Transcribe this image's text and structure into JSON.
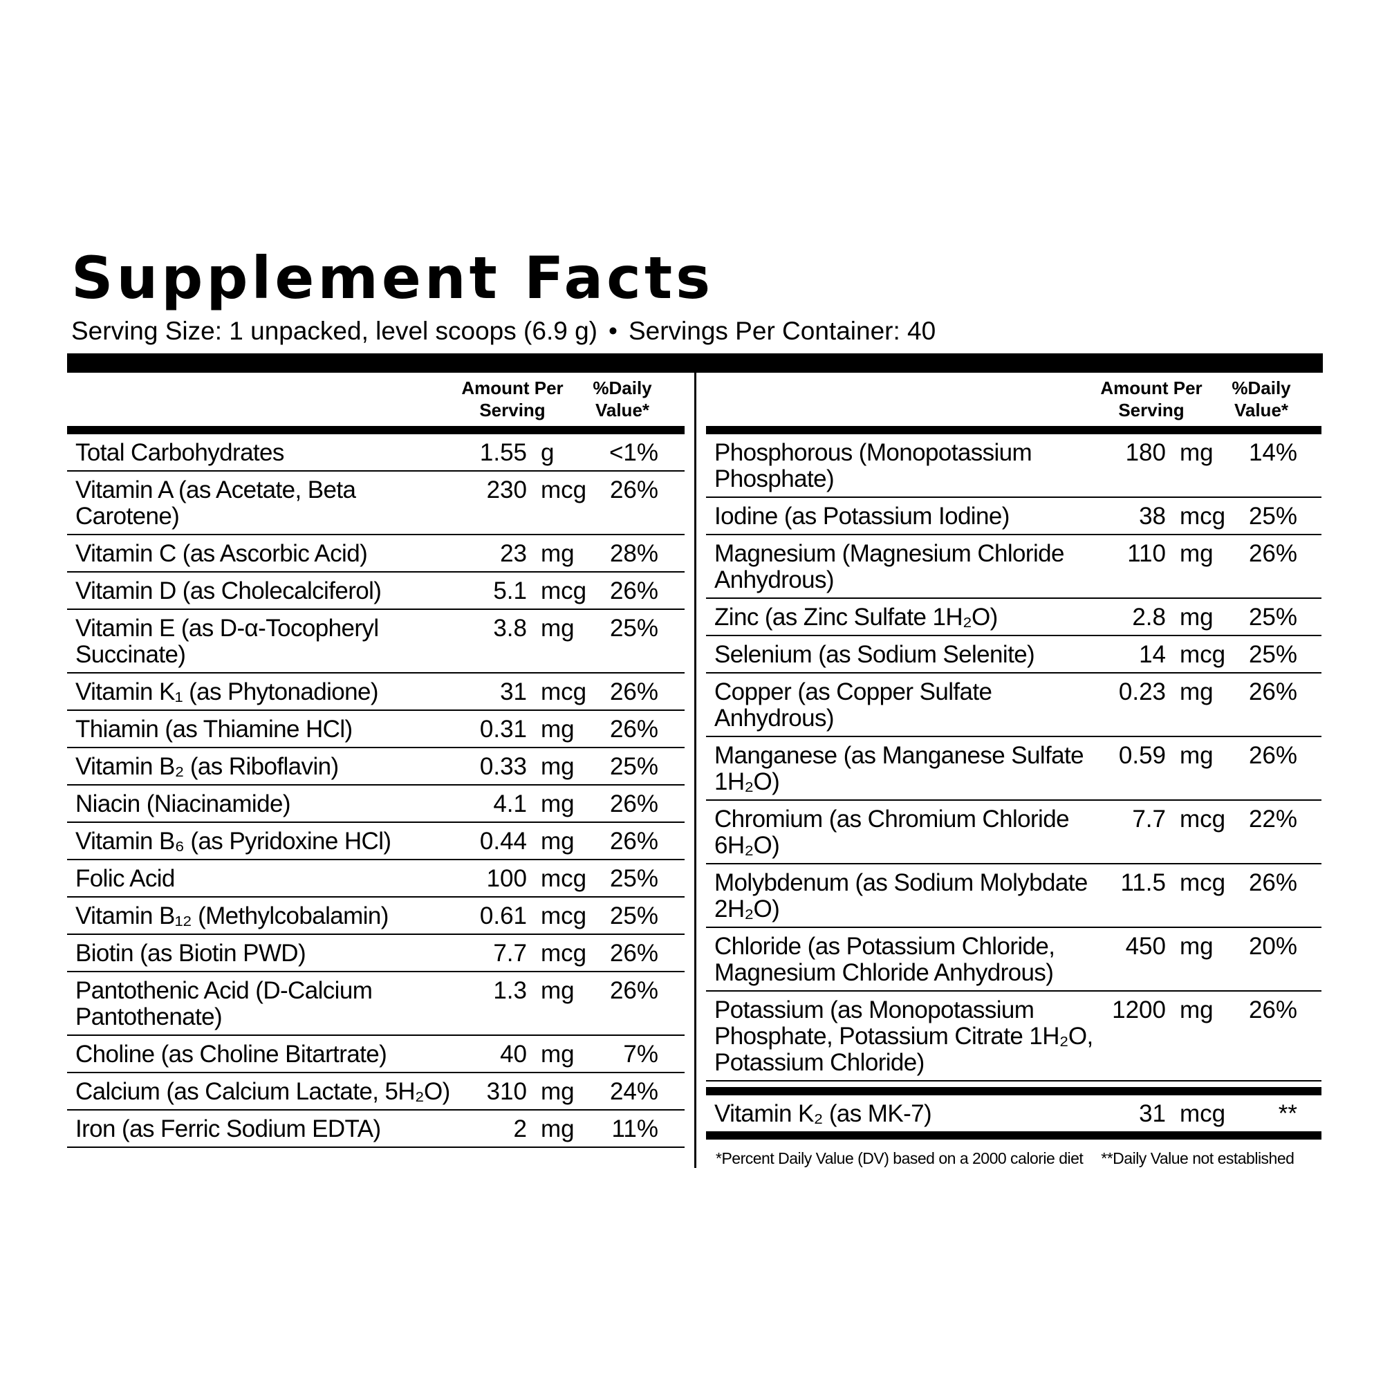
{
  "title": "Supplement Facts",
  "serving": {
    "size": "Serving Size: 1 unpacked, level scoops (6.9 g)",
    "separator": "•",
    "per_container": "Servings Per Container: 40"
  },
  "column_headers": {
    "amount": "Amount Per Serving",
    "daily_value": "%Daily Value*"
  },
  "left_rows": [
    {
      "name": "Total Carbohydrates",
      "amount": "1.55",
      "unit": "g",
      "dv": "<1%"
    },
    {
      "name": "Vitamin A (as Acetate, Beta Carotene)",
      "amount": "230",
      "unit": "mcg",
      "dv": "26%"
    },
    {
      "name": "Vitamin C (as Ascorbic Acid)",
      "amount": "23",
      "unit": "mg",
      "dv": "28%"
    },
    {
      "name": "Vitamin D (as Cholecalciferol)",
      "amount": "5.1",
      "unit": "mcg",
      "dv": "26%"
    },
    {
      "name": "Vitamin E (as D-α-Tocopheryl Succinate)",
      "amount": "3.8",
      "unit": "mg",
      "dv": "25%"
    },
    {
      "name": "Vitamin K₁ (as Phytonadione)",
      "amount": "31",
      "unit": "mcg",
      "dv": "26%"
    },
    {
      "name": "Thiamin (as Thiamine HCl)",
      "amount": "0.31",
      "unit": "mg",
      "dv": "26%"
    },
    {
      "name": "Vitamin B₂ (as Riboflavin)",
      "amount": "0.33",
      "unit": "mg",
      "dv": "25%"
    },
    {
      "name": "Niacin (Niacinamide)",
      "amount": "4.1",
      "unit": "mg",
      "dv": "26%"
    },
    {
      "name": "Vitamin B₆ (as Pyridoxine HCl)",
      "amount": "0.44",
      "unit": "mg",
      "dv": "26%"
    },
    {
      "name": "Folic Acid",
      "amount": "100",
      "unit": "mcg",
      "dv": "25%"
    },
    {
      "name": "Vitamin B₁₂ (Methylcobalamin)",
      "amount": "0.61",
      "unit": "mcg",
      "dv": "25%"
    },
    {
      "name": "Biotin (as Biotin PWD)",
      "amount": "7.7",
      "unit": "mcg",
      "dv": "26%"
    },
    {
      "name": "Pantothenic Acid (D-Calcium Pantothenate)",
      "amount": "1.3",
      "unit": "mg",
      "dv": "26%"
    },
    {
      "name": "Choline (as Choline Bitartrate)",
      "amount": "40",
      "unit": "mg",
      "dv": "7%"
    },
    {
      "name": "Calcium (as Calcium Lactate, 5H₂O)",
      "amount": "310",
      "unit": "mg",
      "dv": "24%"
    },
    {
      "name": "Iron (as Ferric Sodium EDTA)",
      "amount": "2",
      "unit": "mg",
      "dv": "11%"
    }
  ],
  "right_rows": [
    {
      "name": "Phosphorous (Monopotassium Phosphate)",
      "amount": "180",
      "unit": "mg",
      "dv": "14%"
    },
    {
      "name": "Iodine (as Potassium Iodine)",
      "amount": "38",
      "unit": "mcg",
      "dv": "25%"
    },
    {
      "name": "Magnesium (Magnesium Chloride Anhydrous)",
      "amount": "110",
      "unit": "mg",
      "dv": "26%"
    },
    {
      "name": "Zinc (as Zinc Sulfate 1H₂O)",
      "amount": "2.8",
      "unit": "mg",
      "dv": "25%"
    },
    {
      "name": "Selenium (as Sodium Selenite)",
      "amount": "14",
      "unit": "mcg",
      "dv": "25%"
    },
    {
      "name": "Copper (as Copper Sulfate Anhydrous)",
      "amount": "0.23",
      "unit": "mg",
      "dv": "26%"
    },
    {
      "name": "Manganese (as Manganese Sulfate 1H₂O)",
      "amount": "0.59",
      "unit": "mg",
      "dv": "26%"
    },
    {
      "name": "Chromium (as Chromium Chloride 6H₂O)",
      "amount": "7.7",
      "unit": "mcg",
      "dv": "22%"
    },
    {
      "name": "Molybdenum (as Sodium Molybdate 2H₂O)",
      "amount": "11.5",
      "unit": "mcg",
      "dv": "26%"
    },
    {
      "name": "Chloride (as Potassium Chloride, Magnesium Chloride Anhydrous)",
      "amount": "450",
      "unit": "mg",
      "dv": "20%"
    },
    {
      "name": "Potassium (as Monopotassium Phosphate, Potassium Citrate 1H₂O, Potassium Chloride)",
      "amount": "1200",
      "unit": "mg",
      "dv": "26%"
    }
  ],
  "extra_row": {
    "name": "Vitamin K₂ (as MK-7)",
    "amount": "31",
    "unit": "mcg",
    "dv": "**"
  },
  "footnotes": {
    "dv_basis": "*Percent Daily Value (DV) based on a 2000 calorie diet",
    "not_established": "**Daily Value not established"
  }
}
